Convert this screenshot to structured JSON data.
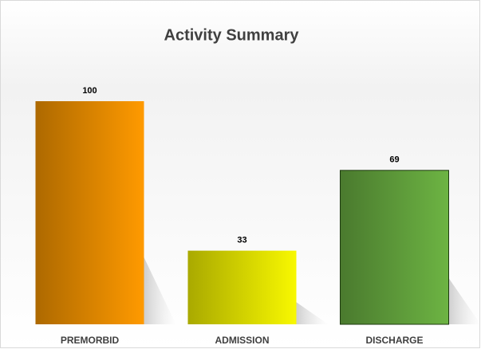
{
  "chart_data": {
    "type": "bar",
    "title": "Activity Summary",
    "categories": [
      "PREMORBID",
      "ADMISSION",
      "DISCHARGE"
    ],
    "values": [
      100,
      33,
      69
    ],
    "colors": [
      "#ff9a00",
      "#f8f800",
      "#6db443"
    ],
    "ylim": [
      0,
      100
    ]
  }
}
